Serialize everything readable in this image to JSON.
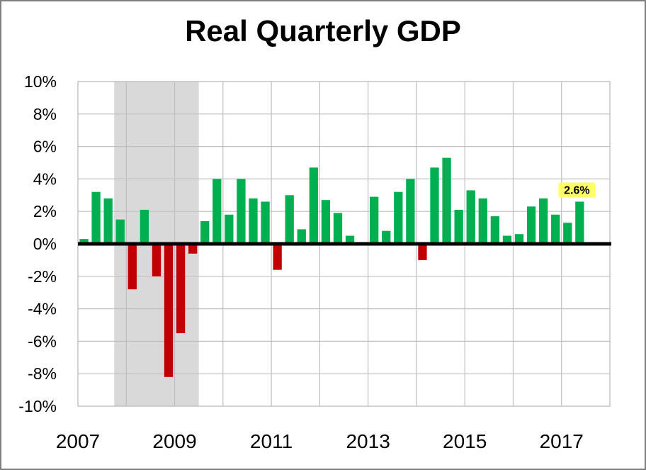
{
  "chart_data": {
    "type": "bar",
    "title": "Real Quarterly GDP",
    "xlabel": "",
    "ylabel": "",
    "ylim": [
      -10,
      10
    ],
    "yticks": [
      "10%",
      "8%",
      "6%",
      "4%",
      "2%",
      "0%",
      "-2%",
      "-4%",
      "-6%",
      "-8%",
      "-10%"
    ],
    "ytick_values": [
      10,
      8,
      6,
      4,
      2,
      0,
      -2,
      -4,
      -6,
      -8,
      -10
    ],
    "xticks": [
      "2007",
      "2009",
      "2011",
      "2013",
      "2015",
      "2017"
    ],
    "xtick_years": [
      2007,
      2009,
      2011,
      2013,
      2015,
      2017
    ],
    "xlim": [
      2007,
      2018
    ],
    "grid": true,
    "legend": "none",
    "colors": {
      "positive": "#00b050",
      "negative": "#c00000",
      "recession": "#d9d9d9",
      "highlight": "#ffff66",
      "grid": "#bfbfbf",
      "zero_line": "#000000"
    },
    "recession": {
      "start": "2007 Q4",
      "end": "2009 Q2",
      "start_year": 2007.75,
      "end_year": 2009.5
    },
    "categories": [
      "2007 Q1",
      "2007 Q2",
      "2007 Q3",
      "2007 Q4",
      "2008 Q1",
      "2008 Q2",
      "2008 Q3",
      "2008 Q4",
      "2009 Q1",
      "2009 Q2",
      "2009 Q3",
      "2009 Q4",
      "2010 Q1",
      "2010 Q2",
      "2010 Q3",
      "2010 Q4",
      "2011 Q1",
      "2011 Q2",
      "2011 Q3",
      "2011 Q4",
      "2012 Q1",
      "2012 Q2",
      "2012 Q3",
      "2012 Q4",
      "2013 Q1",
      "2013 Q2",
      "2013 Q3",
      "2013 Q4",
      "2014 Q1",
      "2014 Q2",
      "2014 Q3",
      "2014 Q4",
      "2015 Q1",
      "2015 Q2",
      "2015 Q3",
      "2015 Q4",
      "2016 Q1",
      "2016 Q2",
      "2016 Q3",
      "2016 Q4",
      "2017 Q1",
      "2017 Q2"
    ],
    "values": [
      0.3,
      3.2,
      2.8,
      1.5,
      -2.8,
      2.1,
      -2.0,
      -8.2,
      -5.5,
      -0.6,
      1.4,
      4.0,
      1.8,
      4.0,
      2.8,
      2.6,
      -1.6,
      3.0,
      0.9,
      4.7,
      2.7,
      1.9,
      0.5,
      0.1,
      2.9,
      0.8,
      3.2,
      4.0,
      -1.0,
      4.7,
      5.3,
      2.1,
      3.3,
      2.8,
      1.7,
      0.5,
      0.6,
      2.3,
      2.8,
      1.8,
      1.3,
      2.6
    ],
    "data_labels": [
      {
        "index": 41,
        "text": "2.6%"
      }
    ]
  }
}
